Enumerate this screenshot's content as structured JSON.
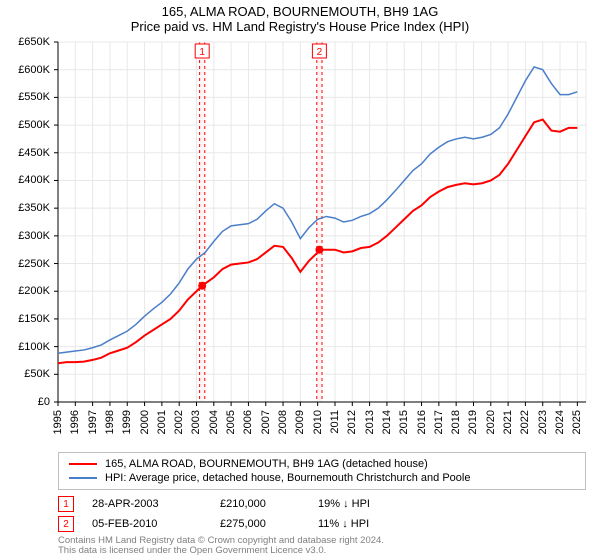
{
  "title": "165, ALMA ROAD, BOURNEMOUTH, BH9 1AG",
  "subtitle": "Price paid vs. HM Land Registry's House Price Index (HPI)",
  "chart": {
    "type": "line",
    "background_color": "#ffffff",
    "grid_color": "#e8e8e8",
    "axis_color": "#000000",
    "xlim": [
      1995,
      2025.5
    ],
    "ylim": [
      0,
      650000
    ],
    "ytick_step": 50000,
    "yticks": [
      "£0",
      "£50K",
      "£100K",
      "£150K",
      "£200K",
      "£250K",
      "£300K",
      "£350K",
      "£400K",
      "£450K",
      "£500K",
      "£550K",
      "£600K",
      "£650K"
    ],
    "xticks": [
      "1995",
      "1996",
      "1997",
      "1998",
      "1999",
      "2000",
      "2001",
      "2002",
      "2003",
      "2004",
      "2005",
      "2006",
      "2007",
      "2008",
      "2009",
      "2010",
      "2011",
      "2012",
      "2013",
      "2014",
      "2015",
      "2016",
      "2017",
      "2018",
      "2019",
      "2020",
      "2021",
      "2022",
      "2023",
      "2024",
      "2025"
    ],
    "label_fontsize": 11,
    "series": [
      {
        "name": "165, ALMA ROAD, BOURNEMOUTH, BH9 1AG (detached house)",
        "color": "#ff0000",
        "line_width": 2,
        "points": [
          [
            1995,
            70000
          ],
          [
            1995.5,
            72000
          ],
          [
            1996,
            72000
          ],
          [
            1996.5,
            73000
          ],
          [
            1997,
            76000
          ],
          [
            1997.5,
            80000
          ],
          [
            1998,
            88000
          ],
          [
            1998.5,
            93000
          ],
          [
            1999,
            98000
          ],
          [
            1999.5,
            108000
          ],
          [
            2000,
            120000
          ],
          [
            2000.5,
            130000
          ],
          [
            2001,
            140000
          ],
          [
            2001.5,
            150000
          ],
          [
            2002,
            165000
          ],
          [
            2002.5,
            185000
          ],
          [
            2003,
            200000
          ],
          [
            2003.33,
            210000
          ],
          [
            2004,
            225000
          ],
          [
            2004.5,
            240000
          ],
          [
            2005,
            248000
          ],
          [
            2005.5,
            250000
          ],
          [
            2006,
            252000
          ],
          [
            2006.5,
            258000
          ],
          [
            2007,
            270000
          ],
          [
            2007.5,
            282000
          ],
          [
            2008,
            280000
          ],
          [
            2008.5,
            260000
          ],
          [
            2009,
            235000
          ],
          [
            2009.5,
            255000
          ],
          [
            2010,
            270000
          ],
          [
            2010.1,
            275000
          ],
          [
            2011,
            275000
          ],
          [
            2011.5,
            270000
          ],
          [
            2012,
            272000
          ],
          [
            2012.5,
            278000
          ],
          [
            2013,
            280000
          ],
          [
            2013.5,
            288000
          ],
          [
            2014,
            300000
          ],
          [
            2014.5,
            315000
          ],
          [
            2015,
            330000
          ],
          [
            2015.5,
            345000
          ],
          [
            2016,
            355000
          ],
          [
            2016.5,
            370000
          ],
          [
            2017,
            380000
          ],
          [
            2017.5,
            388000
          ],
          [
            2018,
            392000
          ],
          [
            2018.5,
            395000
          ],
          [
            2019,
            393000
          ],
          [
            2019.5,
            395000
          ],
          [
            2020,
            400000
          ],
          [
            2020.5,
            410000
          ],
          [
            2021,
            430000
          ],
          [
            2021.5,
            455000
          ],
          [
            2022,
            480000
          ],
          [
            2022.5,
            505000
          ],
          [
            2023,
            510000
          ],
          [
            2023.5,
            490000
          ],
          [
            2024,
            488000
          ],
          [
            2024.5,
            495000
          ],
          [
            2025,
            495000
          ]
        ]
      },
      {
        "name": "HPI: Average price, detached house, Bournemouth Christchurch and Poole",
        "color": "#4a7ec8",
        "line_width": 1.5,
        "points": [
          [
            1995,
            88000
          ],
          [
            1995.5,
            90000
          ],
          [
            1996,
            92000
          ],
          [
            1996.5,
            94000
          ],
          [
            1997,
            98000
          ],
          [
            1997.5,
            103000
          ],
          [
            1998,
            112000
          ],
          [
            1998.5,
            120000
          ],
          [
            1999,
            128000
          ],
          [
            1999.5,
            140000
          ],
          [
            2000,
            155000
          ],
          [
            2000.5,
            168000
          ],
          [
            2001,
            180000
          ],
          [
            2001.5,
            195000
          ],
          [
            2002,
            215000
          ],
          [
            2002.5,
            240000
          ],
          [
            2003,
            258000
          ],
          [
            2003.5,
            270000
          ],
          [
            2004,
            290000
          ],
          [
            2004.5,
            308000
          ],
          [
            2005,
            318000
          ],
          [
            2005.5,
            320000
          ],
          [
            2006,
            322000
          ],
          [
            2006.5,
            330000
          ],
          [
            2007,
            345000
          ],
          [
            2007.5,
            358000
          ],
          [
            2008,
            350000
          ],
          [
            2008.5,
            325000
          ],
          [
            2009,
            295000
          ],
          [
            2009.5,
            315000
          ],
          [
            2010,
            330000
          ],
          [
            2010.5,
            335000
          ],
          [
            2011,
            332000
          ],
          [
            2011.5,
            325000
          ],
          [
            2012,
            328000
          ],
          [
            2012.5,
            335000
          ],
          [
            2013,
            340000
          ],
          [
            2013.5,
            350000
          ],
          [
            2014,
            365000
          ],
          [
            2014.5,
            382000
          ],
          [
            2015,
            400000
          ],
          [
            2015.5,
            418000
          ],
          [
            2016,
            430000
          ],
          [
            2016.5,
            448000
          ],
          [
            2017,
            460000
          ],
          [
            2017.5,
            470000
          ],
          [
            2018,
            475000
          ],
          [
            2018.5,
            478000
          ],
          [
            2019,
            475000
          ],
          [
            2019.5,
            478000
          ],
          [
            2020,
            483000
          ],
          [
            2020.5,
            495000
          ],
          [
            2021,
            520000
          ],
          [
            2021.5,
            550000
          ],
          [
            2022,
            580000
          ],
          [
            2022.5,
            605000
          ],
          [
            2023,
            600000
          ],
          [
            2023.5,
            575000
          ],
          [
            2024,
            555000
          ],
          [
            2024.5,
            555000
          ],
          [
            2025,
            560000
          ]
        ]
      }
    ],
    "markers": [
      {
        "n": "1",
        "x": 2003.33,
        "y": 210000,
        "color": "#ff0000",
        "band_start": 2003.18,
        "band_end": 2003.48
      },
      {
        "n": "2",
        "x": 2010.1,
        "y": 275000,
        "color": "#ff0000",
        "band_start": 2009.95,
        "band_end": 2010.25
      }
    ],
    "marker_band_fill": "#fff4f4",
    "marker_band_border": "#ff0000",
    "marker_band_dash": "3,3"
  },
  "legend": {
    "border_color": "#c0c0c0",
    "items": [
      {
        "color": "#ff0000",
        "label": "165, ALMA ROAD, BOURNEMOUTH, BH9 1AG (detached house)"
      },
      {
        "color": "#4a7ec8",
        "label": "HPI: Average price, detached house, Bournemouth Christchurch and Poole"
      }
    ]
  },
  "sales": [
    {
      "n": "1",
      "date": "28-APR-2003",
      "price": "£210,000",
      "diff": "19% ↓ HPI",
      "marker_color": "#ff0000"
    },
    {
      "n": "2",
      "date": "05-FEB-2010",
      "price": "£275,000",
      "diff": "11% ↓ HPI",
      "marker_color": "#ff0000"
    }
  ],
  "footer": {
    "line1": "Contains HM Land Registry data © Crown copyright and database right 2024.",
    "line2": "This data is licensed under the Open Government Licence v3.0."
  }
}
